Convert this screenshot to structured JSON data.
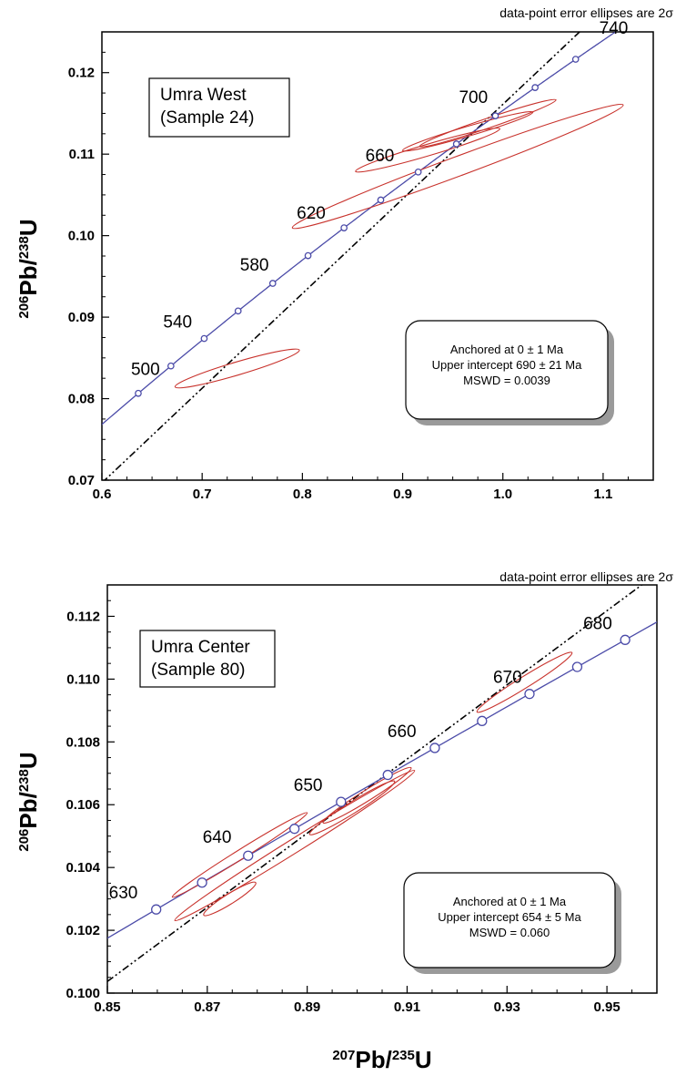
{
  "chart_data": [
    {
      "type": "scatter",
      "subtype": "U-Pb concordia diagram",
      "note": "data-point error ellipses are 2σ",
      "sample_label": [
        "Umra West",
        "(Sample 24)"
      ],
      "stats": [
        "Anchored at 0 ± 1 Ma",
        "Upper intercept 690 ± 21 Ma",
        "MSWD = 0.0039"
      ],
      "xlabel": "",
      "ylabel": {
        "mass": "206",
        "el1": "Pb/",
        "mass2": "238",
        "el2": "U"
      },
      "xlim": [
        0.6,
        1.15
      ],
      "ylim": [
        0.07,
        0.125
      ],
      "xticks": [
        "0.6",
        "0.7",
        "0.8",
        "0.9",
        "1.0",
        "1.1"
      ],
      "yticks": [
        "0.07",
        "0.08",
        "0.09",
        "0.10",
        "0.11",
        "0.12"
      ],
      "grid": false,
      "concordia_ages": [
        "500",
        "540",
        "580",
        "620",
        "660",
        "700",
        "740"
      ],
      "concordia_age_values": [
        500,
        540,
        580,
        620,
        660,
        700,
        740
      ],
      "concordia_marker_step_ma": 20,
      "discordia": {
        "lower_intercept_ma": 0,
        "upper_intercept_ma": 690
      },
      "ellipses": [
        {
          "x": 0.735,
          "y": 0.0837,
          "rx": 0.062,
          "ry": 0.0008,
          "angle_data": 0.0364
        },
        {
          "x": 0.955,
          "y": 0.1085,
          "rx": 0.165,
          "ry": 0.0012,
          "angle_data": 0.0457
        },
        {
          "x": 0.925,
          "y": 0.1105,
          "rx": 0.072,
          "ry": 0.0007,
          "angle_data": 0.0363
        },
        {
          "x": 0.965,
          "y": 0.1128,
          "rx": 0.065,
          "ry": 0.0006,
          "angle_data": 0.0362
        },
        {
          "x": 0.985,
          "y": 0.1138,
          "rx": 0.068,
          "ry": 0.0006,
          "angle_data": 0.042
        }
      ]
    },
    {
      "type": "scatter",
      "subtype": "U-Pb concordia diagram",
      "note": "data-point error ellipses are 2σ",
      "sample_label": [
        "Umra Center",
        "(Sample 80)"
      ],
      "stats": [
        "Anchored at 0 ± 1 Ma",
        "Upper intercept 654 ± 5 Ma",
        "MSWD = 0.060"
      ],
      "xlabel": {
        "mass": "207",
        "el1": "Pb/",
        "mass2": "235",
        "el2": "U"
      },
      "ylabel": {
        "mass": "206",
        "el1": "Pb/",
        "mass2": "238",
        "el2": "U"
      },
      "xlim": [
        0.85,
        0.96
      ],
      "ylim": [
        0.1,
        0.113
      ],
      "xticks": [
        "0.85",
        "0.87",
        "0.89",
        "0.91",
        "0.93",
        "0.95"
      ],
      "yticks": [
        "0.100",
        "0.102",
        "0.104",
        "0.106",
        "0.108",
        "0.110",
        "0.112"
      ],
      "grid": false,
      "concordia_ages": [
        "630",
        "640",
        "650",
        "660",
        "670",
        "680"
      ],
      "concordia_age_values": [
        630,
        640,
        650,
        660,
        670,
        680
      ],
      "concordia_marker_step_ma": 5,
      "discordia": {
        "lower_intercept_ma": 0,
        "upper_intercept_ma": 654
      },
      "ellipses": [
        {
          "x": 0.8765,
          "y": 0.1044,
          "rx": 0.0135,
          "ry": 0.00015,
          "angle_data": 0.0995
        },
        {
          "x": 0.8745,
          "y": 0.103,
          "rx": 0.0052,
          "ry": 0.00016,
          "angle_data": 0.0995
        },
        {
          "x": 0.8875,
          "y": 0.1047,
          "rx": 0.024,
          "ry": 0.00022,
          "angle_data": 0.0995
        },
        {
          "x": 0.899,
          "y": 0.1059,
          "rx": 0.0085,
          "ry": 0.00018,
          "angle_data": 0.0995
        },
        {
          "x": 0.902,
          "y": 0.1063,
          "rx": 0.0088,
          "ry": 0.00017,
          "angle_data": 0.0995
        },
        {
          "x": 0.9335,
          "y": 0.1099,
          "rx": 0.0095,
          "ry": 0.00018,
          "angle_data": 0.0995
        }
      ]
    }
  ],
  "colors": {
    "concordia": "#4b4ba8",
    "ellipse": "#c8322c",
    "discordia": "#000000",
    "axis": "#000000"
  }
}
